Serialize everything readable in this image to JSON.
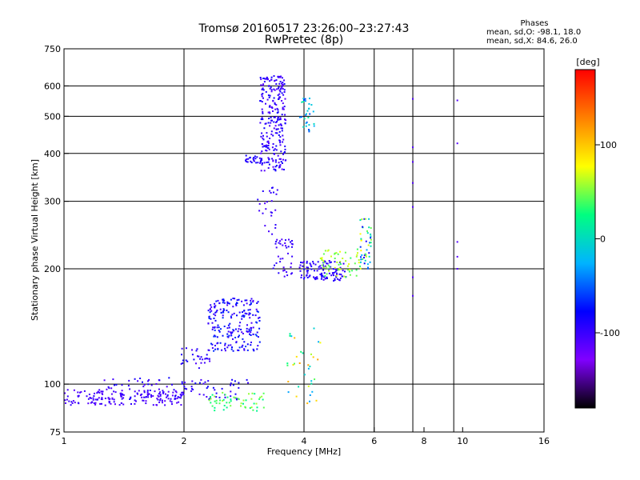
{
  "chart_data": {
    "type": "scatter",
    "title": "Tromsø 20160517 23:26:00–23:27:43",
    "subtitle": "RwPretec (8p)",
    "xlabel": "Frequency [MHz]",
    "ylabel": "Stationary phase Virtual Height [km]",
    "x_scale": "log2",
    "y_scale": "log",
    "xlim": [
      1,
      16
    ],
    "ylim": [
      75,
      750
    ],
    "x_ticks": [
      1,
      2,
      4,
      6,
      8,
      10,
      16
    ],
    "x_gridlines": [
      2,
      4,
      6,
      7.5,
      9.5
    ],
    "y_ticks": [
      75,
      100,
      200,
      300,
      400,
      500,
      600,
      750
    ],
    "y_gridlines": [
      100,
      200,
      300,
      400,
      500,
      600
    ],
    "grid": true,
    "stats": {
      "heading": "Phases",
      "line1": "mean, sd,O:  -98.1, 18.0",
      "line2": "mean, sd,X:  84.6, 26.0"
    },
    "colorbar": {
      "label": "[deg]",
      "min": -180,
      "max": 180,
      "ticks": [
        100,
        0,
        -100
      ],
      "colors": [
        "#000000",
        "#8000ff",
        "#0000ff",
        "#00b4ff",
        "#00ff80",
        "#ffff00",
        "#ff8000",
        "#ff0000"
      ]
    },
    "clusters": [
      {
        "x": [
          1.0,
          2.0
        ],
        "y": [
          88,
          97
        ],
        "phase": [
          -115,
          -95
        ],
        "n": 170
      },
      {
        "x": [
          1.2,
          2.9
        ],
        "y": [
          91,
          104
        ],
        "phase": [
          -110,
          -80
        ],
        "n": 95
      },
      {
        "x": [
          2.3,
          3.2
        ],
        "y": [
          85,
          95
        ],
        "phase": [
          15,
          60
        ],
        "n": 55
      },
      {
        "x": [
          1.95,
          2.35
        ],
        "y": [
          110,
          125
        ],
        "phase": [
          -110,
          -80
        ],
        "n": 30
      },
      {
        "x": [
          2.3,
          3.1
        ],
        "y": [
          122,
          168
        ],
        "phase": [
          -110,
          -60
        ],
        "n": 220
      },
      {
        "x": [
          2.85,
          3.15
        ],
        "y": [
          378,
          395
        ],
        "phase": [
          -100,
          -80
        ],
        "n": 25
      },
      {
        "x": [
          3.1,
          3.6
        ],
        "y": [
          360,
          640
        ],
        "phase": [
          -115,
          -80
        ],
        "n": 260
      },
      {
        "x": [
          3.05,
          3.45
        ],
        "y": [
          245,
          330
        ],
        "phase": [
          -110,
          -90
        ],
        "n": 25
      },
      {
        "x": [
          3.35,
          3.75
        ],
        "y": [
          190,
          240
        ],
        "phase": [
          -110,
          -90
        ],
        "n": 40
      },
      {
        "x": [
          3.9,
          4.25
        ],
        "y": [
          455,
          560
        ],
        "phase": [
          -60,
          20
        ],
        "n": 30
      },
      {
        "x": [
          3.9,
          5.1
        ],
        "y": [
          186,
          210
        ],
        "phase": [
          -105,
          -85
        ],
        "n": 110
      },
      {
        "x": [
          4.4,
          5.6
        ],
        "y": [
          190,
          225
        ],
        "phase": [
          30,
          75
        ],
        "n": 60
      },
      {
        "x": [
          5.5,
          5.9
        ],
        "y": [
          200,
          270
        ],
        "phase": [
          -100,
          80
        ],
        "n": 45
      },
      {
        "x": [
          3.6,
          4.4
        ],
        "y": [
          88,
          140
        ],
        "phase": [
          -40,
          120
        ],
        "n": 35
      }
    ],
    "columns": [
      {
        "x": 7.5,
        "y": [
          170,
          190,
          290,
          335,
          380,
          415,
          555
        ],
        "phase": -110
      },
      {
        "x": 9.7,
        "y": [
          200,
          215,
          235,
          425,
          550
        ],
        "phase": -110
      }
    ]
  }
}
